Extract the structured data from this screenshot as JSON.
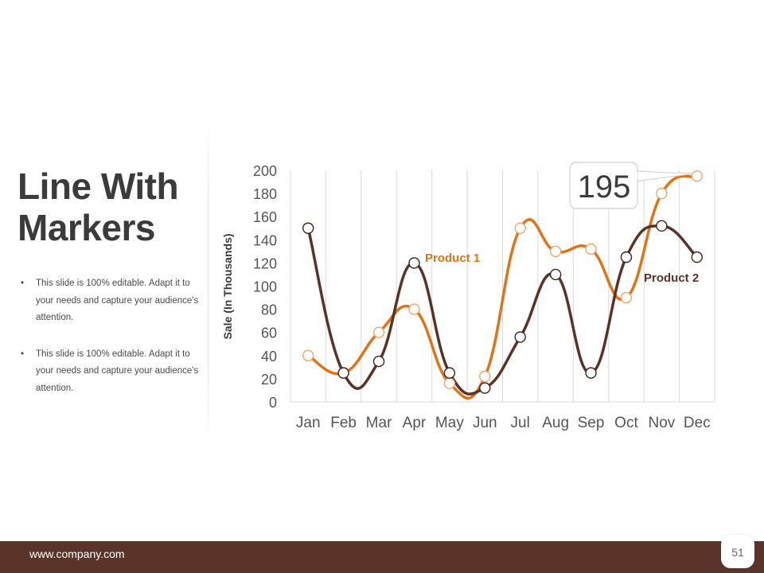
{
  "slide": {
    "title_line1": "Line With",
    "title_line2": "Markers",
    "bullets": [
      "This slide is 100% editable. Adapt it to your needs and capture your audience's attention.",
      "This slide is 100% editable. Adapt it to your needs and capture your audience's attention."
    ],
    "bullet_char": "•"
  },
  "footer": {
    "url": "www.company.com",
    "page_number": "51"
  },
  "colors": {
    "product1": "#e07314",
    "product2": "#5a3228",
    "footer_bg": "#5a3428",
    "grid": "#d9d9d9"
  },
  "chart_data": {
    "type": "line",
    "title": "",
    "xlabel": "",
    "ylabel": "Sale (In Thousands)",
    "categories": [
      "Jan",
      "Feb",
      "Mar",
      "Apr",
      "May",
      "Jun",
      "Jul",
      "Aug",
      "Sep",
      "Oct",
      "Nov",
      "Dec"
    ],
    "ylim": [
      0,
      200
    ],
    "yticks": [
      0,
      20,
      40,
      60,
      80,
      100,
      120,
      140,
      160,
      180,
      200
    ],
    "grid": "vertical",
    "series": [
      {
        "name": "Product 1",
        "color": "#e07314",
        "values": [
          40,
          25,
          60,
          80,
          16,
          22,
          150,
          130,
          132,
          90,
          180,
          195
        ]
      },
      {
        "name": "Product 2",
        "color": "#5a3228",
        "values": [
          150,
          25,
          35,
          120,
          25,
          12,
          56,
          110,
          25,
          125,
          152,
          125
        ]
      }
    ],
    "callout": {
      "text": "195",
      "series": "Product 1",
      "category": "Dec"
    }
  }
}
